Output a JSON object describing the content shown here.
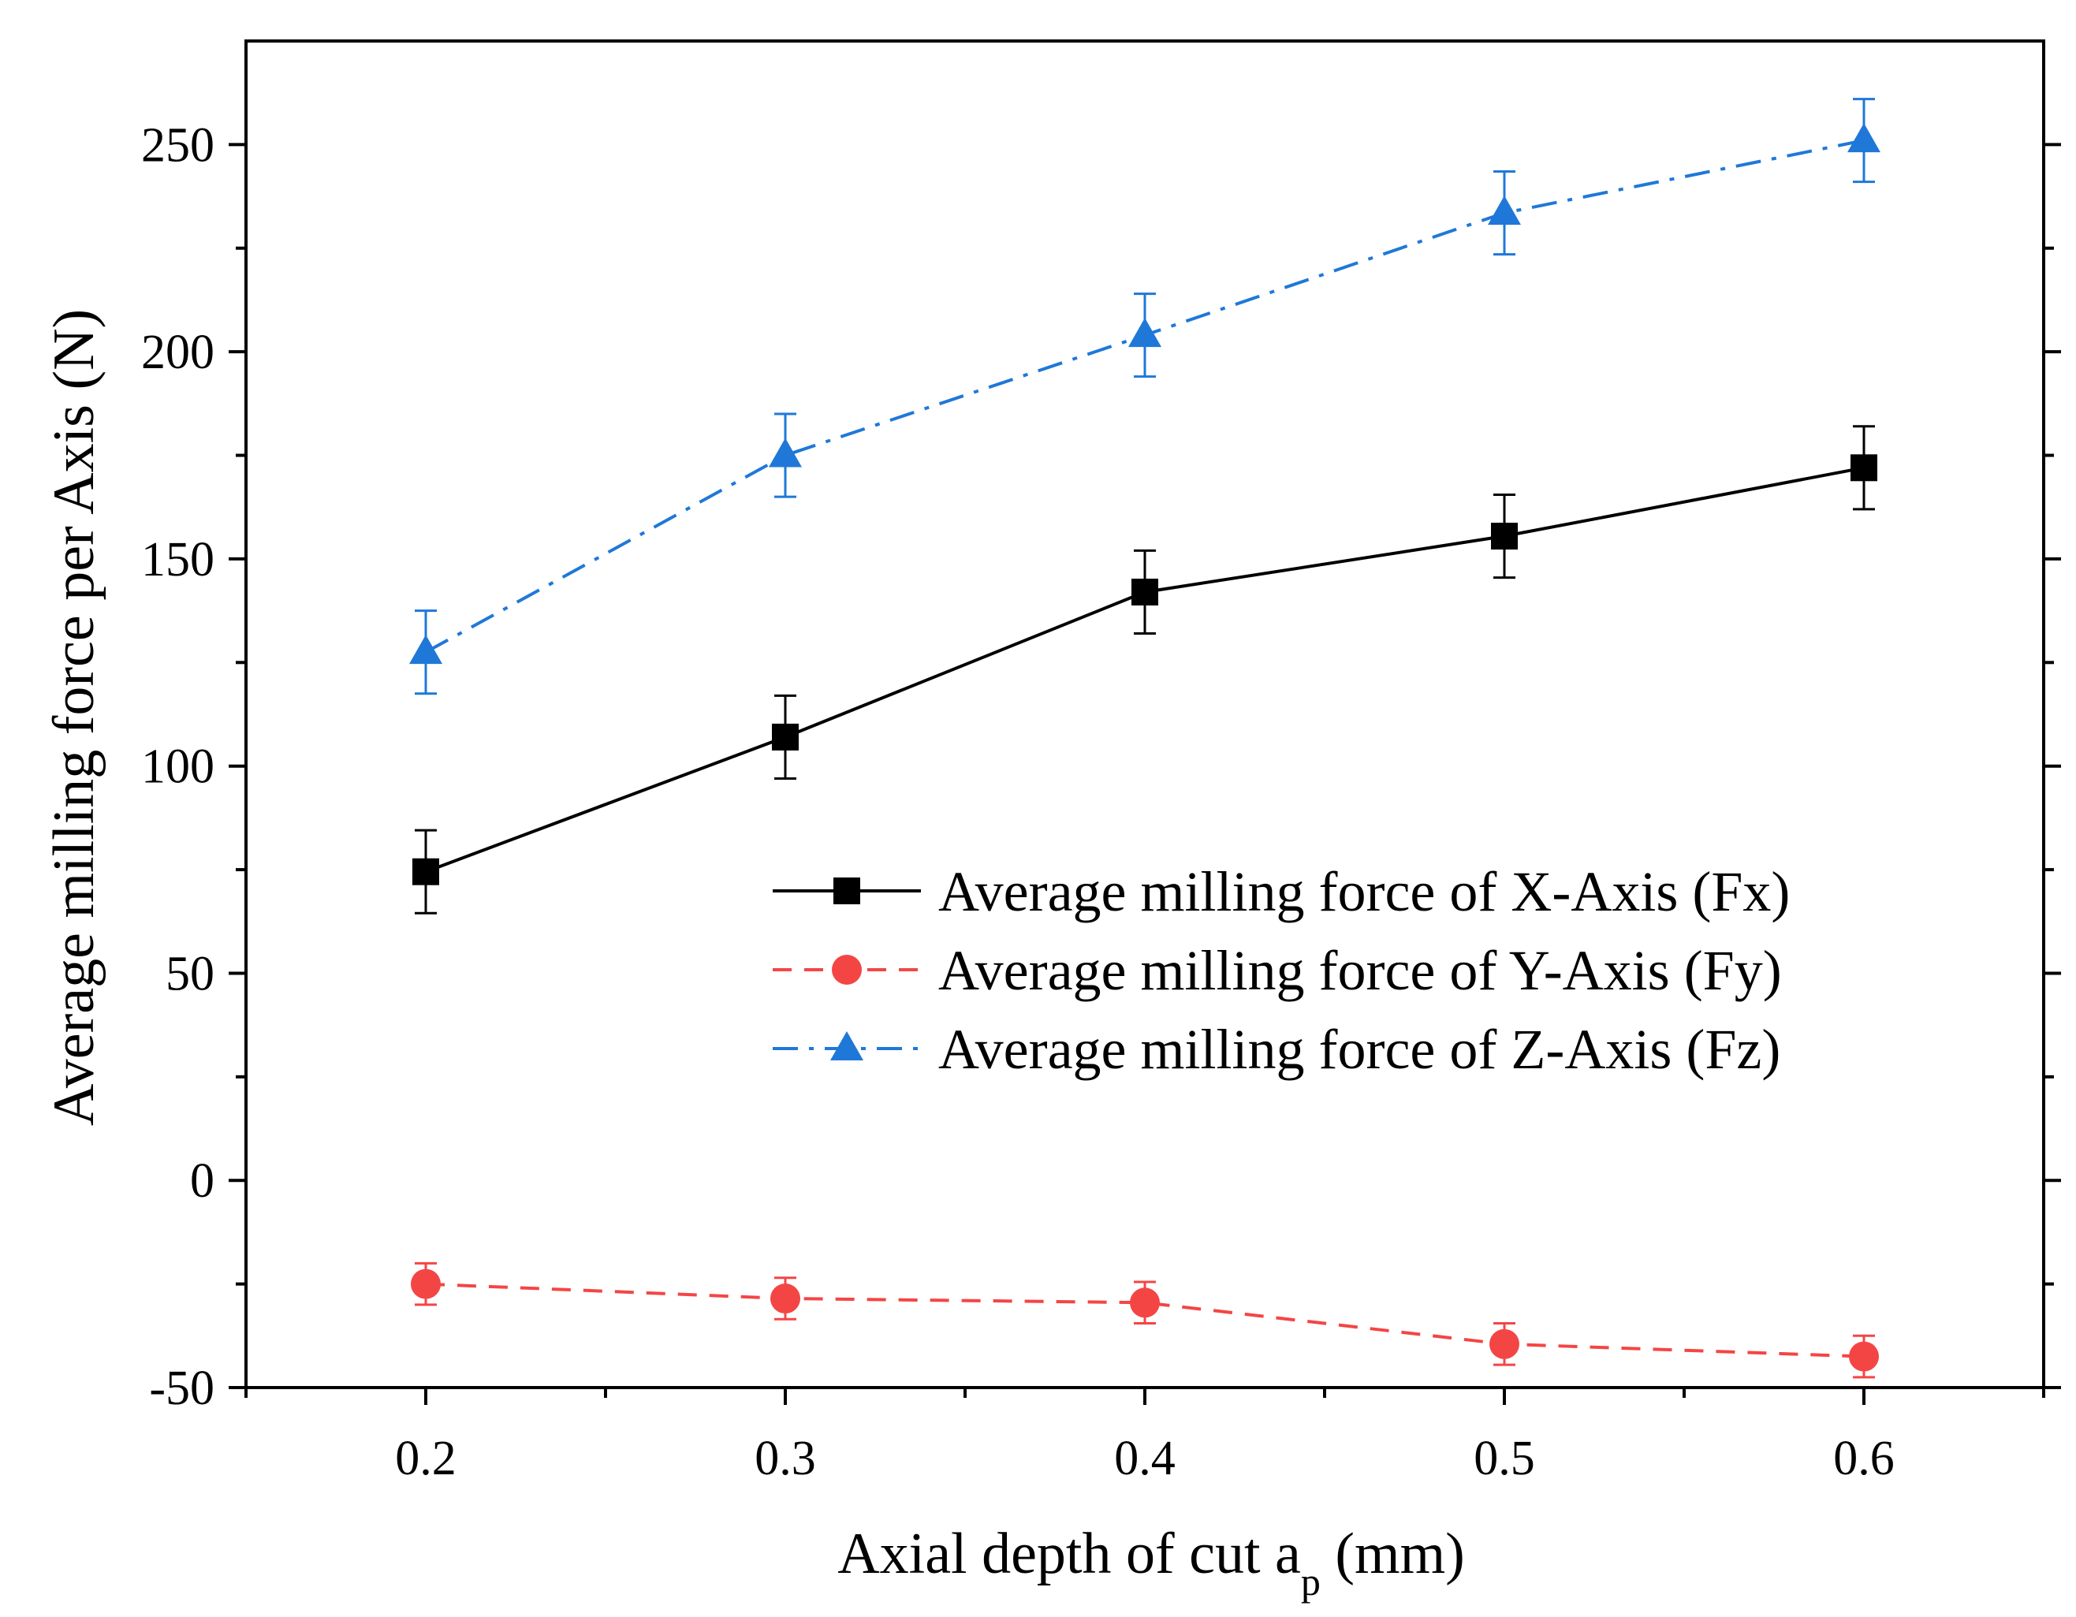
{
  "chart_data": {
    "type": "line",
    "xlabel": {
      "main": "Axial depth of cut a",
      "sub": "p",
      "unit": " (mm)"
    },
    "ylabel": "Average milling force per Axis (N)",
    "xlim": [
      0.15,
      0.65
    ],
    "ylim": [
      -50,
      275
    ],
    "x_ticks": [
      0.2,
      0.3,
      0.4,
      0.5,
      0.6
    ],
    "x_tick_labels": [
      "0.2",
      "0.3",
      "0.4",
      "0.5",
      "0.6"
    ],
    "y_ticks": [
      -50,
      0,
      50,
      100,
      150,
      200,
      250
    ],
    "y_tick_labels": [
      "-50",
      "0",
      "50",
      "100",
      "150",
      "200",
      "250"
    ],
    "x": [
      0.2,
      0.3,
      0.4,
      0.5,
      0.6
    ],
    "grid": false,
    "legend_position": "center-right",
    "series": [
      {
        "name": "Average milling force of X-Axis (Fx)",
        "values": [
          74.5,
          107,
          142,
          155.5,
          172
        ],
        "error": [
          10,
          10,
          10,
          10,
          10
        ],
        "color": "#000000",
        "marker": "square",
        "line_style": "solid"
      },
      {
        "name": "Average milling force of Y-Axis (Fy)",
        "values": [
          -25,
          -28.5,
          -29.5,
          -39.5,
          -42.5
        ],
        "error": [
          5,
          5,
          5,
          5,
          5
        ],
        "color": "#f44545",
        "marker": "circle",
        "line_style": "dashed"
      },
      {
        "name": "Average milling force of Z-Axis (Fz)",
        "values": [
          127.5,
          175,
          204,
          233.5,
          251
        ],
        "error": [
          10,
          10,
          10,
          10,
          10
        ],
        "color": "#1f78d8",
        "marker": "triangle",
        "line_style": "dash-dot"
      }
    ]
  }
}
